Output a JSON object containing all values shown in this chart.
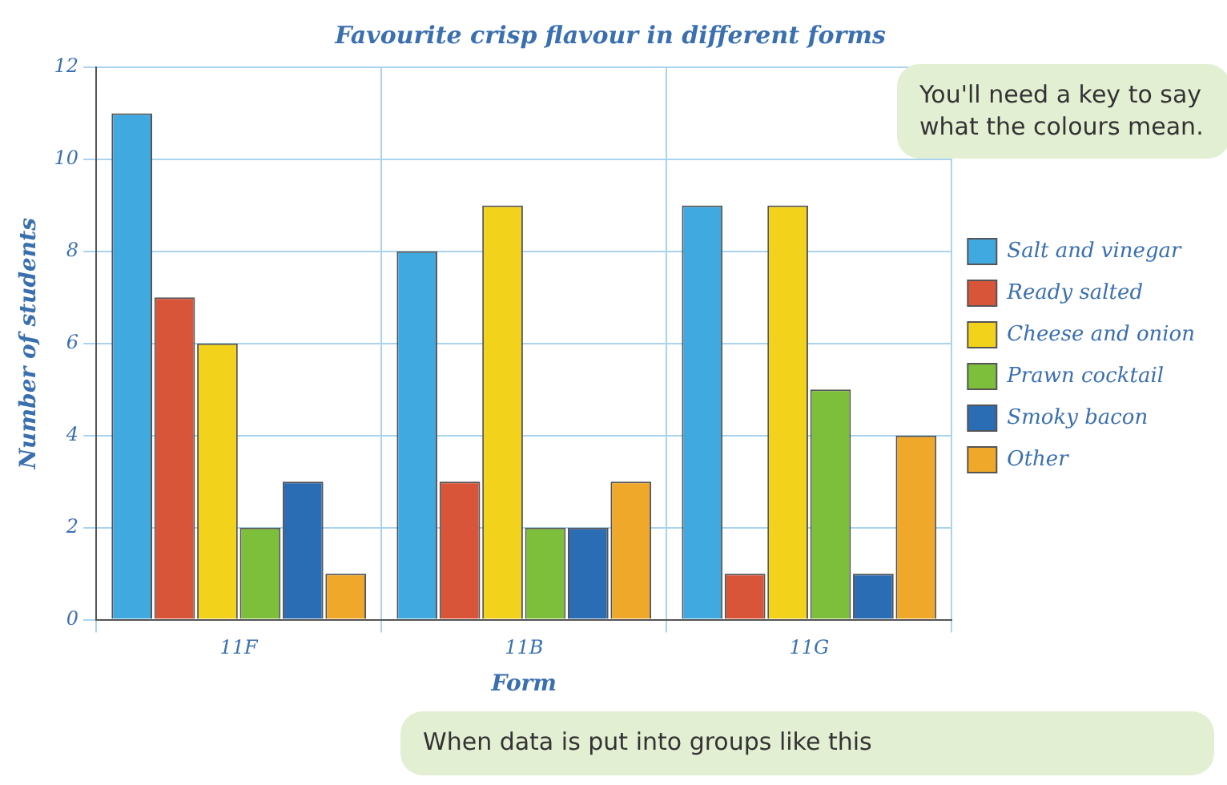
{
  "chart_data": {
    "type": "bar",
    "title": "Favourite crisp flavour in different forms",
    "xlabel": "Form",
    "ylabel": "Number of students",
    "categories": [
      "11F",
      "11B",
      "11G"
    ],
    "series": [
      {
        "name": "Salt and vinegar",
        "color": "#3fa9e0",
        "values": [
          11,
          8,
          9
        ]
      },
      {
        "name": "Ready salted",
        "color": "#d9553a",
        "values": [
          7,
          3,
          1
        ]
      },
      {
        "name": "Cheese and onion",
        "color": "#f2d21b",
        "values": [
          6,
          9,
          9
        ]
      },
      {
        "name": "Prawn cocktail",
        "color": "#7dbf3a",
        "values": [
          2,
          2,
          5
        ]
      },
      {
        "name": "Smoky bacon",
        "color": "#2a6db5",
        "values": [
          3,
          2,
          1
        ]
      },
      {
        "name": "Other",
        "color": "#f0a82a",
        "values": [
          1,
          3,
          4
        ]
      }
    ],
    "ylim": [
      0,
      12
    ],
    "yticks": [
      0,
      2,
      4,
      6,
      8,
      10,
      12
    ],
    "grid": true,
    "legend": "right",
    "annotations": [
      "You'll need a key to say what the colours mean.",
      "When data is put into groups like this"
    ]
  }
}
